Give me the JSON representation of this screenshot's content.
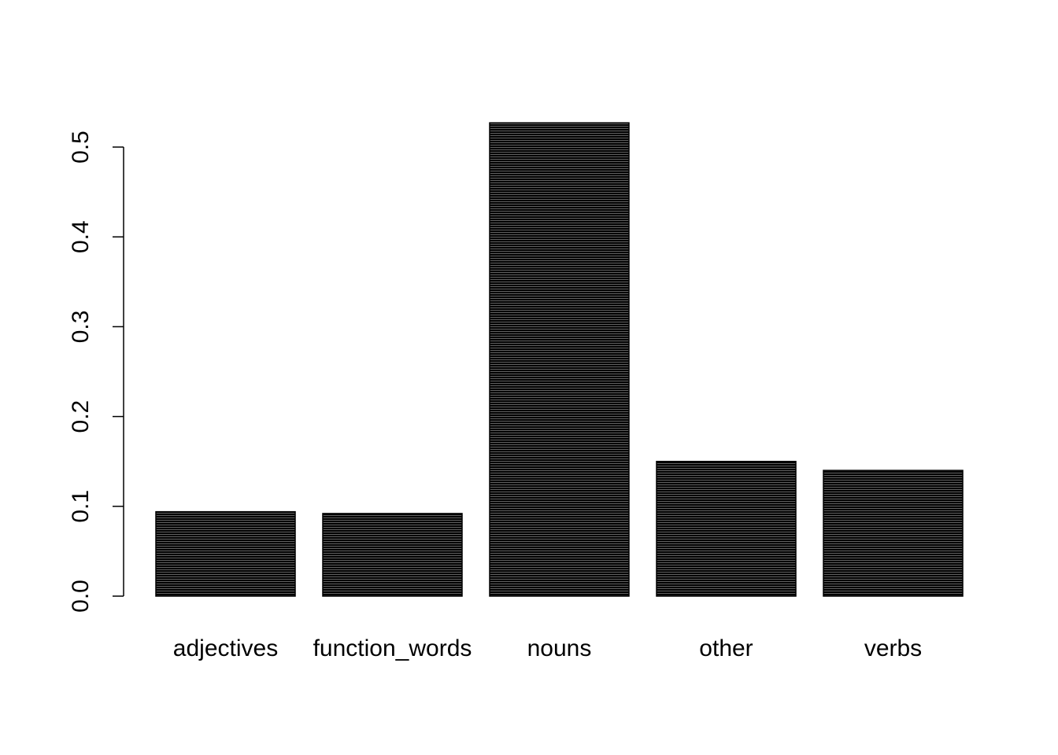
{
  "chart_data": {
    "type": "bar",
    "title": "",
    "xlabel": "",
    "ylabel": "",
    "categories": [
      "adjectives",
      "function_words",
      "nouns",
      "other",
      "verbs"
    ],
    "values": [
      0.094,
      0.092,
      0.527,
      0.15,
      0.14
    ],
    "ylim": [
      0,
      0.5
    ],
    "yticks": [
      {
        "value": 0.0,
        "label": "0.0"
      },
      {
        "value": 0.1,
        "label": "0.1"
      },
      {
        "value": 0.2,
        "label": "0.2"
      },
      {
        "value": 0.3,
        "label": "0.3"
      },
      {
        "value": 0.4,
        "label": "0.4"
      },
      {
        "value": 0.5,
        "label": "0.5"
      }
    ],
    "grid": false,
    "legend": "none",
    "bar_fill": "#000000",
    "bar_stripe": "#ffffff"
  }
}
